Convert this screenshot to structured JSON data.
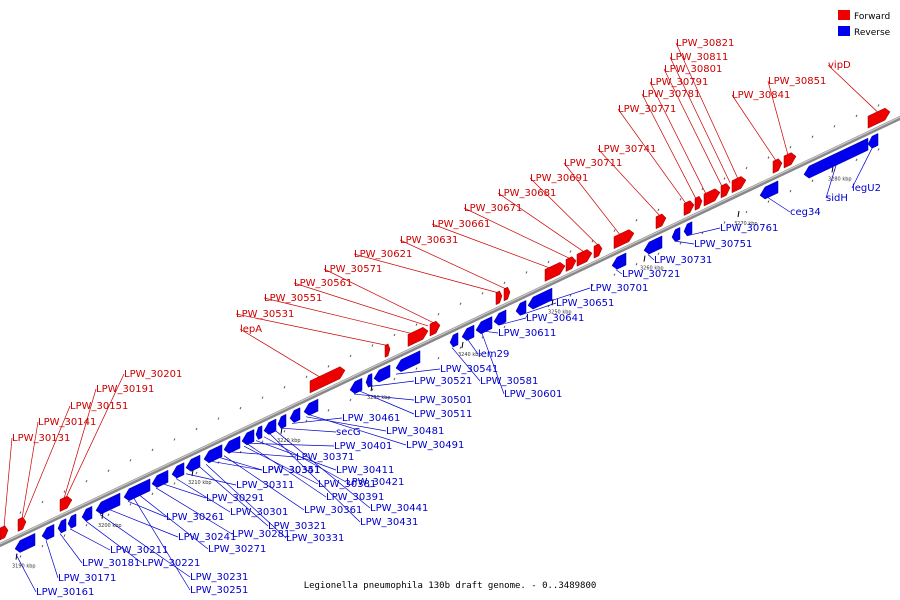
{
  "caption": "Legionella pneumophila 130b draft genome. - 0..3489800",
  "legend": [
    {
      "label": "Forward",
      "color": "#ee0000"
    },
    {
      "label": "Reverse",
      "color": "#0000ee"
    }
  ],
  "colors": {
    "forward": "#ee0000",
    "reverse": "#0000ee",
    "backbone": "#999999"
  },
  "ticks": [
    "3190 kbp",
    "3200 kbp",
    "3210 kbp",
    "3220 kbp",
    "3230 kbp",
    "3240 kbp",
    "3250 kbp",
    "3260 kbp",
    "3270 kbp",
    "3280 kbp"
  ],
  "forward_labels": [
    "LPW_30131",
    "LPW_30141",
    "LPW_30151",
    "LPW_30191",
    "LPW_30201",
    "lepA",
    "LPW_30531",
    "LPW_30551",
    "LPW_30561",
    "LPW_30571",
    "LPW_30621",
    "LPW_30631",
    "LPW_30661",
    "LPW_30671",
    "LPW_30681",
    "LPW_30691",
    "LPW_30711",
    "LPW_30741",
    "LPW_30771",
    "LPW_30781",
    "LPW_30791",
    "LPW_30801",
    "LPW_30811",
    "LPW_30821",
    "LPW_30841",
    "LPW_30851",
    "vipD"
  ],
  "reverse_labels": [
    "LPW_30161",
    "LPW_30171",
    "LPW_30181",
    "LPW_30211",
    "LPW_30221",
    "LPW_30231",
    "LPW_30241",
    "LPW_30251",
    "LPW_30261",
    "LPW_30271",
    "LPW_30281",
    "LPW_30291",
    "LPW_30301",
    "LPW_30311",
    "LPW_30321",
    "LPW_30331",
    "LPW_30341",
    "LPW_30351",
    "LPW_30361",
    "LPW_30371",
    "LPW_30381",
    "LPW_30391",
    "LPW_30401",
    "LPW_30411",
    "LPW_30421",
    "LPW_30431",
    "LPW_30441",
    "secG",
    "LPW_30461",
    "LPW_30481",
    "LPW_30491",
    "LPW_30501",
    "LPW_30511",
    "LPW_30521",
    "LPW_30541",
    "LPW_30581",
    "lem29",
    "LPW_30601",
    "LPW_30611",
    "LPW_30641",
    "LPW_30651",
    "LPW_30701",
    "LPW_30721",
    "LPW_30731",
    "LPW_30751",
    "LPW_30761",
    "ceg34",
    "sidH",
    "legU2"
  ]
}
